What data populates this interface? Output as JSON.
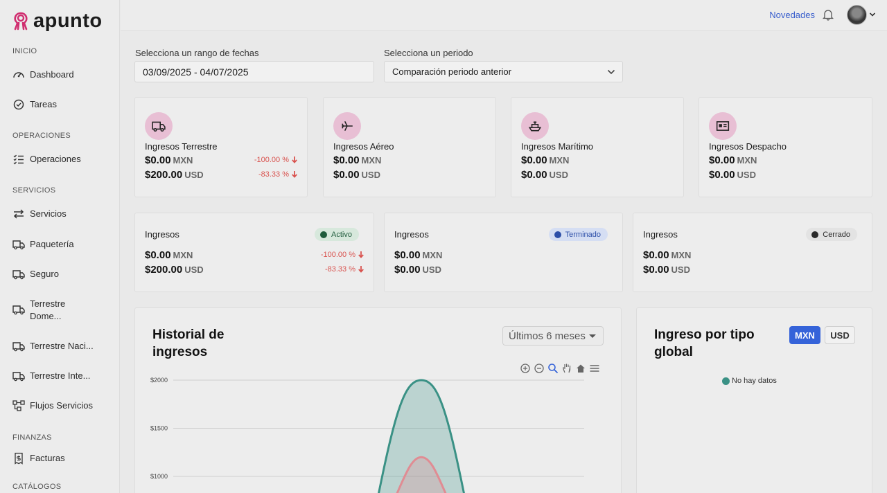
{
  "app": {
    "brand": "apunto"
  },
  "sidebar": {
    "sections": {
      "inicio": "INICIO",
      "operaciones": "OPERACIONES",
      "servicios": "SERVICIOS",
      "finanzas": "FINANZAS",
      "catalogos": "CATÁLOGOS"
    },
    "items": {
      "dashboard": "Dashboard",
      "tareas": "Tareas",
      "operaciones": "Operaciones",
      "servicios": "Servicios",
      "paqueteria": "Paquetería",
      "seguro": "Seguro",
      "terrestre_dome_1": "Terrestre",
      "terrestre_dome_2": "Dome...",
      "terrestre_naci": "Terrestre Naci...",
      "terrestre_inte": "Terrestre Inte...",
      "flujos": "Flujos Servicios",
      "facturas": "Facturas"
    }
  },
  "topbar": {
    "novedades": "Novedades"
  },
  "filters": {
    "date_label": "Selecciona un rango de fechas",
    "date_value": "03/09/2025 - 04/07/2025",
    "period_label": "Selecciona un periodo",
    "period_value": "Comparación periodo anterior"
  },
  "income_cards": [
    {
      "title": "Ingresos Terrestre",
      "mxn": "$0.00",
      "usd": "$200.00",
      "mxn_pct": "-100.00 %",
      "usd_pct": "-83.33 %"
    },
    {
      "title": "Ingresos Aéreo",
      "mxn": "$0.00",
      "usd": "$0.00"
    },
    {
      "title": "Ingresos Marítimo",
      "mxn": "$0.00",
      "usd": "$0.00"
    },
    {
      "title": "Ingresos Despacho",
      "mxn": "$0.00",
      "usd": "$0.00"
    }
  ],
  "currency": {
    "mxn": "MXN",
    "usd": "USD"
  },
  "status_cards": [
    {
      "title": "Ingresos",
      "status": "Activo",
      "mxn": "$0.00",
      "usd": "$200.00",
      "mxn_pct": "-100.00 %",
      "usd_pct": "-83.33 %"
    },
    {
      "title": "Ingresos",
      "status": "Terminado",
      "mxn": "$0.00",
      "usd": "$0.00"
    },
    {
      "title": "Ingresos",
      "status": "Cerrado",
      "mxn": "$0.00",
      "usd": "$0.00"
    }
  ],
  "colors": {
    "accent": "#3563d9",
    "negative": "#d9534f",
    "icon_circle": "#e8bfd4",
    "active": "#1f5c3c",
    "terminado": "#2d4fa8",
    "cerrado": "#2a2a2a",
    "series_teal": "#3a9185",
    "series_pink": "#e08c93"
  },
  "history": {
    "title_line1": "Historial de",
    "title_line2": "ingresos",
    "range": "Últimos 6 meses"
  },
  "by_type": {
    "title_line1": "Ingreso por tipo",
    "title_line2": "global",
    "btn_mxn": "MXN",
    "btn_usd": "USD",
    "empty": "No hay datos"
  },
  "chart_data": {
    "type": "area",
    "y_ticks": [
      "$2000",
      "$1500",
      "$1000"
    ],
    "ylim": [
      1000,
      2000
    ],
    "series": [
      {
        "peak": 2000
      },
      {
        "peak": 1200
      }
    ]
  }
}
